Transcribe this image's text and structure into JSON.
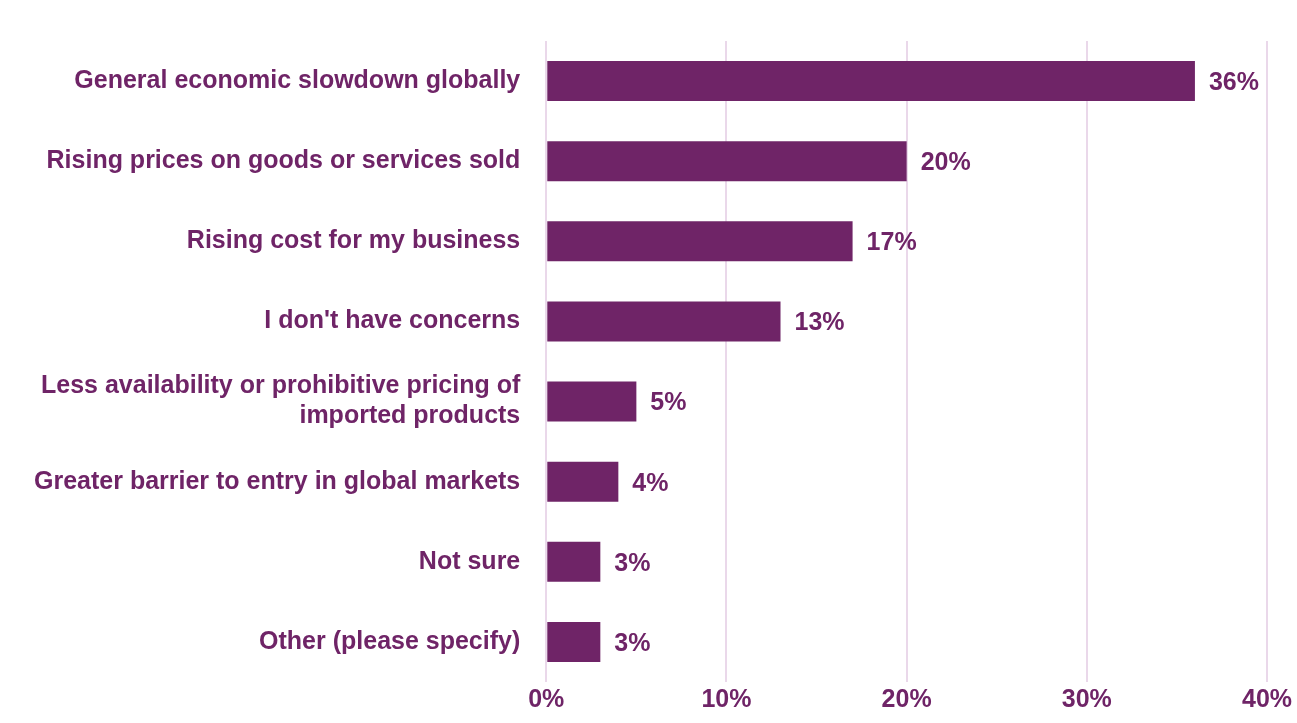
{
  "chart_data": {
    "type": "bar",
    "orientation": "horizontal",
    "categories": [
      "General economic slowdown globally",
      "Rising prices on goods or services sold",
      "Rising cost for my business",
      "I don't have concerns",
      "Less availability or prohibitive pricing of imported products",
      "Greater barrier to entry in global markets",
      "Not sure",
      "Other (please specify)"
    ],
    "values": [
      36,
      20,
      17,
      13,
      5,
      4,
      3,
      3
    ],
    "value_labels": [
      "36%",
      "20%",
      "17%",
      "13%",
      "5%",
      "4%",
      "3%",
      "3%"
    ],
    "color": "#6f2467",
    "xlim": [
      0,
      40
    ],
    "xticks": [
      {
        "value": 0,
        "label": "0%"
      },
      {
        "value": 10,
        "label": "10%"
      },
      {
        "value": 20,
        "label": "20%"
      },
      {
        "value": 30,
        "label": "30%"
      },
      {
        "value": 40,
        "label": "40%"
      }
    ],
    "grid": "x",
    "legend": false
  }
}
